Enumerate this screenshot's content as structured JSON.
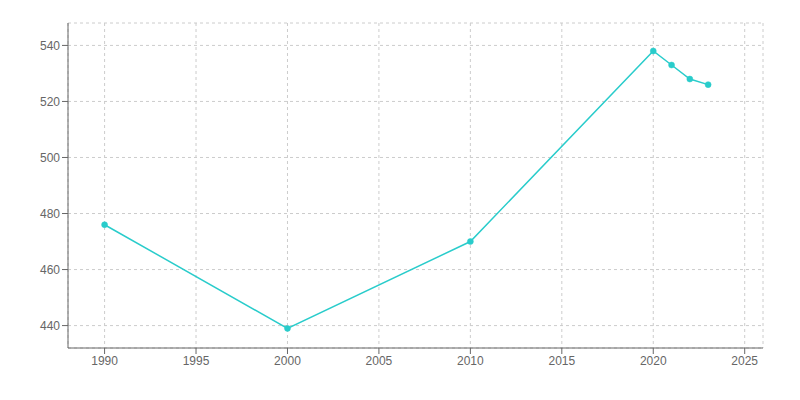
{
  "chart_data": {
    "type": "line",
    "x": [
      1990,
      2000,
      2010,
      2020,
      2021,
      2022,
      2023
    ],
    "values": [
      476,
      439,
      470,
      538,
      533,
      528,
      526
    ],
    "color": "#29CCCB",
    "marker": "circle",
    "xlim": [
      1988,
      2026
    ],
    "ylim": [
      432,
      548
    ],
    "xticks": [
      1990,
      1995,
      2000,
      2005,
      2010,
      2015,
      2020,
      2025
    ],
    "yticks": [
      440,
      460,
      480,
      500,
      520,
      540
    ],
    "grid": true
  }
}
